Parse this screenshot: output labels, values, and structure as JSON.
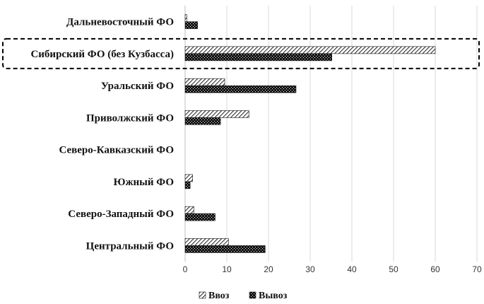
{
  "chart_data": {
    "type": "bar",
    "orientation": "horizontal",
    "categories": [
      "Дальневосточный ФО",
      "Сибирский ФО (без Кузбасса)",
      "Уральский ФО",
      "Приволжский ФО",
      "Северо-Кавказский ФО",
      "Южный ФО",
      "Северо-Западный ФО",
      "Центральный ФО"
    ],
    "series": [
      {
        "name": "Ввоз",
        "values": [
          0.4,
          60,
          9.5,
          15.3,
          0,
          1.8,
          2.1,
          10.4
        ],
        "pattern": "hatch",
        "color": "#222222"
      },
      {
        "name": "Вывоз",
        "values": [
          3,
          35.2,
          26.6,
          8.5,
          0,
          1.2,
          7.2,
          19.2
        ],
        "pattern": "dots",
        "color": "#111111"
      }
    ],
    "xlim": [
      0,
      70
    ],
    "xticks": [
      0,
      10,
      20,
      30,
      40,
      50,
      60,
      70
    ],
    "grid": true,
    "legend_position": "bottom",
    "highlighted_category": "Сибирский ФО (без Кузбасса)"
  }
}
